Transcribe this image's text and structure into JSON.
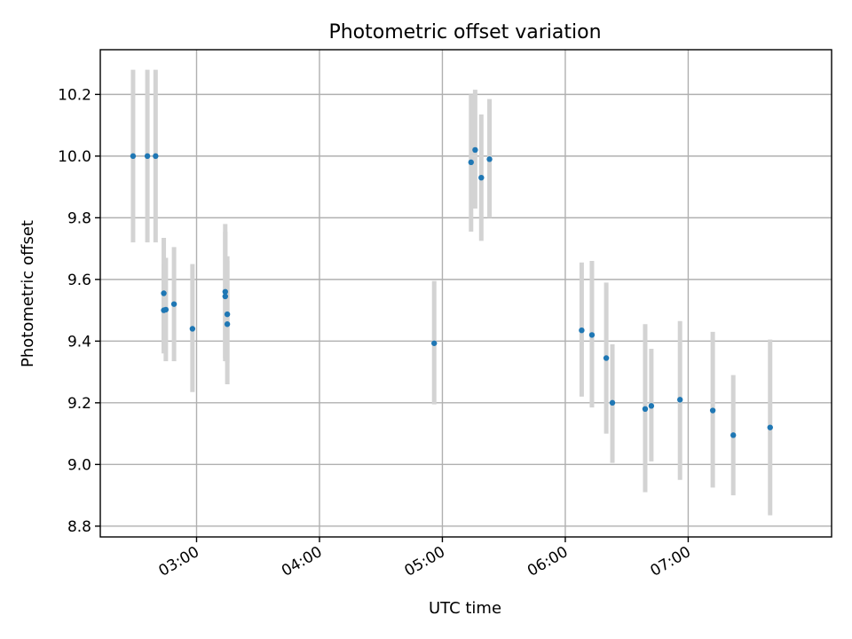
{
  "chart_data": {
    "type": "scatter",
    "title": "Photometric offset variation",
    "xlabel": "UTC time",
    "ylabel": "Photometric offset",
    "x_unit": "UTC time (HH:MM)",
    "xlim": [
      "02:13",
      "08:10"
    ],
    "ylim": [
      8.765,
      10.345
    ],
    "x_ticks": [
      "03:00",
      "04:00",
      "05:00",
      "06:00",
      "07:00"
    ],
    "y_ticks": [
      "8.8",
      "9.0",
      "9.2",
      "9.4",
      "9.6",
      "9.8",
      "10.0",
      "10.2"
    ],
    "grid": true,
    "legend": "none",
    "point_color": "#1f77b4",
    "errorbar_color": "#d3d3d3",
    "points": [
      {
        "x": "02:29",
        "y": 10.0,
        "yerr": [
          9.72,
          10.28
        ]
      },
      {
        "x": "02:36",
        "y": 10.0,
        "yerr": [
          9.72,
          10.28
        ]
      },
      {
        "x": "02:40",
        "y": 10.0,
        "yerr": [
          9.72,
          10.28
        ]
      },
      {
        "x": "02:44",
        "y": 9.555,
        "yerr": [
          9.37,
          9.735
        ]
      },
      {
        "x": "02:44",
        "y": 9.5,
        "yerr": [
          9.36,
          9.65
        ]
      },
      {
        "x": "02:45",
        "y": 9.502,
        "yerr": [
          9.335,
          9.67
        ]
      },
      {
        "x": "02:49",
        "y": 9.52,
        "yerr": [
          9.335,
          9.705
        ]
      },
      {
        "x": "02:58",
        "y": 9.44,
        "yerr": [
          9.235,
          9.65
        ]
      },
      {
        "x": "03:14",
        "y": 9.56,
        "yerr": [
          9.345,
          9.78
        ]
      },
      {
        "x": "03:14",
        "y": 9.545,
        "yerr": [
          9.335,
          9.755
        ]
      },
      {
        "x": "03:15",
        "y": 9.487,
        "yerr": [
          9.33,
          9.675
        ]
      },
      {
        "x": "03:15",
        "y": 9.455,
        "yerr": [
          9.26,
          9.66
        ]
      },
      {
        "x": "04:56",
        "y": 9.393,
        "yerr": [
          9.195,
          9.595
        ]
      },
      {
        "x": "05:14",
        "y": 9.98,
        "yerr": [
          9.755,
          10.2
        ]
      },
      {
        "x": "05:16",
        "y": 10.02,
        "yerr": [
          9.83,
          10.215
        ]
      },
      {
        "x": "05:19",
        "y": 9.93,
        "yerr": [
          9.725,
          10.135
        ]
      },
      {
        "x": "05:23",
        "y": 9.99,
        "yerr": [
          9.8,
          10.185
        ]
      },
      {
        "x": "06:08",
        "y": 9.435,
        "yerr": [
          9.22,
          9.655
        ]
      },
      {
        "x": "06:13",
        "y": 9.42,
        "yerr": [
          9.185,
          9.66
        ]
      },
      {
        "x": "06:20",
        "y": 9.345,
        "yerr": [
          9.1,
          9.59
        ]
      },
      {
        "x": "06:23",
        "y": 9.2,
        "yerr": [
          9.005,
          9.39
        ]
      },
      {
        "x": "06:39",
        "y": 9.18,
        "yerr": [
          8.91,
          9.455
        ]
      },
      {
        "x": "06:42",
        "y": 9.19,
        "yerr": [
          9.01,
          9.375
        ]
      },
      {
        "x": "06:56",
        "y": 9.21,
        "yerr": [
          8.95,
          9.465
        ]
      },
      {
        "x": "07:12",
        "y": 9.175,
        "yerr": [
          8.925,
          9.43
        ]
      },
      {
        "x": "07:22",
        "y": 9.095,
        "yerr": [
          8.9,
          9.29
        ]
      },
      {
        "x": "07:40",
        "y": 9.12,
        "yerr": [
          8.835,
          9.405
        ]
      }
    ]
  }
}
